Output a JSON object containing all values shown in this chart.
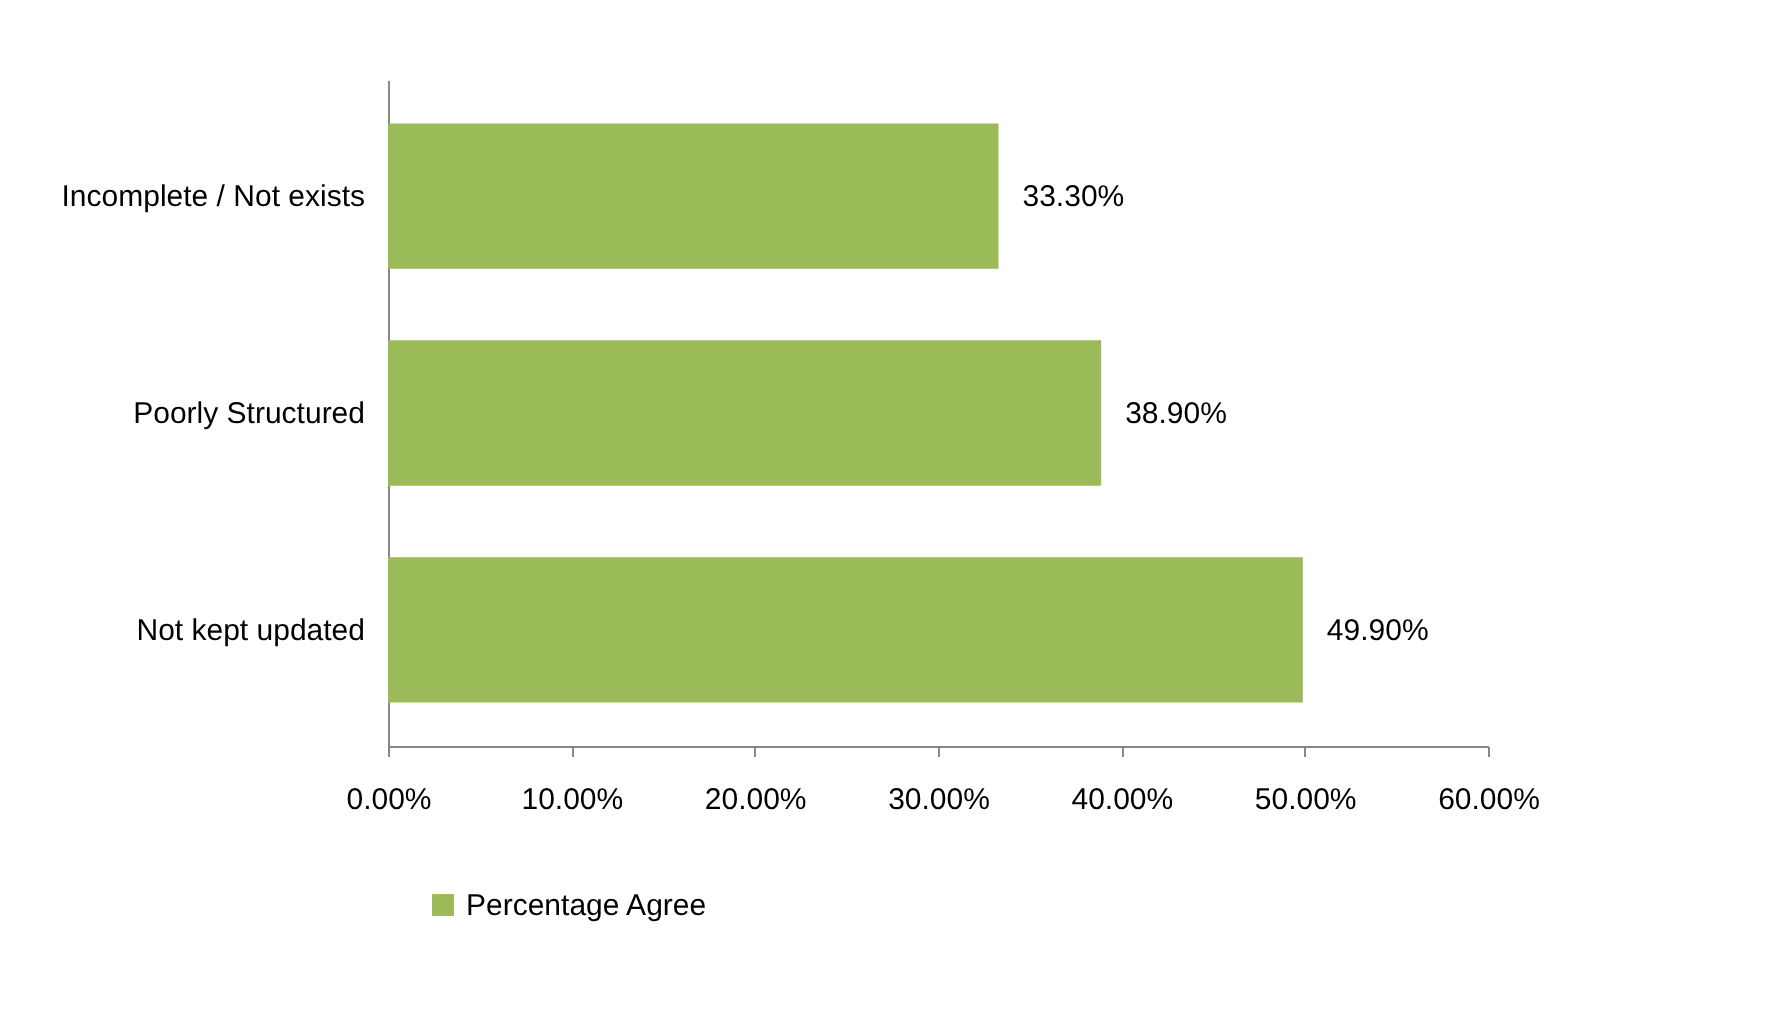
{
  "chart_data": {
    "type": "bar",
    "orientation": "horizontal",
    "categories": [
      "Incomplete / Not exists",
      "Poorly Structured",
      "Not kept updated"
    ],
    "series": [
      {
        "name": "Percentage Agree",
        "color": "#9bbb59",
        "values": [
          33.3,
          38.9,
          49.9
        ],
        "value_labels": [
          "33.30%",
          "38.90%",
          "49.90%"
        ]
      }
    ],
    "xlim": [
      0,
      60
    ],
    "xticks": [
      {
        "value": 0,
        "label": "0.00%"
      },
      {
        "value": 10,
        "label": "10.00%"
      },
      {
        "value": 20,
        "label": "20.00%"
      },
      {
        "value": 30,
        "label": "30.00%"
      },
      {
        "value": 40,
        "label": "40.00%"
      },
      {
        "value": 50,
        "label": "50.00%"
      },
      {
        "value": 60,
        "label": "60.00%"
      }
    ],
    "grid": false,
    "legend": "bottom"
  }
}
